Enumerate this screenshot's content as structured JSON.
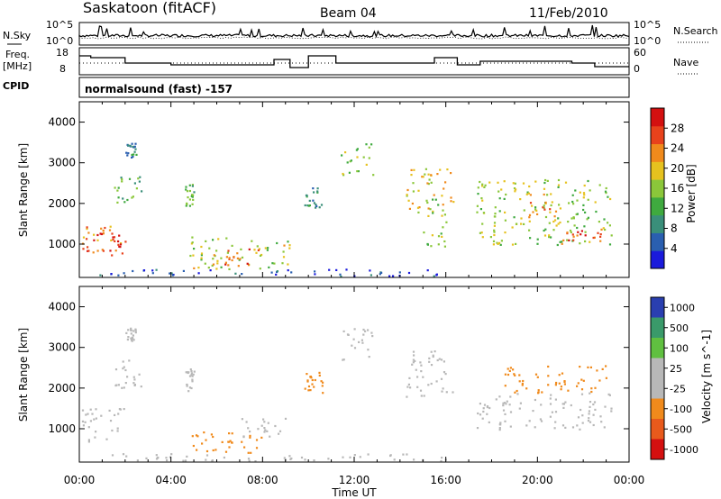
{
  "header": {
    "station": "Saskatoon (fitACF)",
    "beam": "Beam 04",
    "date": "11/Feb/2010"
  },
  "left_labels": {
    "nsky": "N.Sky",
    "freq_line1": "Freq.",
    "freq_line2": "[MHz]",
    "cpid": "CPID"
  },
  "right_labels": {
    "nsearch": "N.Search",
    "nave": "Nave"
  },
  "cpid_text": "normalsound (fast) -157",
  "noise_panel": {
    "ticks_left": [
      "10^5",
      "10^0"
    ],
    "ticks_right": [
      "10^5",
      "10^0"
    ]
  },
  "freq_panel": {
    "ticks_left": [
      "18",
      "8"
    ],
    "ticks_right": [
      "60",
      "0"
    ]
  },
  "colors": {
    "power": [
      "#1a1adc",
      "#2a5fb0",
      "#3a8f7a",
      "#3faa3f",
      "#8bc73a",
      "#e6c21f",
      "#f08a1c",
      "#e8421c",
      "#d41010"
    ],
    "velocity": [
      "#2a3fb0",
      "#3a9a6a",
      "#60c040",
      "#b8b8b8",
      "#b8b8b8",
      "#f08a1c",
      "#e85a1c",
      "#d41010"
    ]
  },
  "chart_data": [
    {
      "type": "heatmap",
      "name": "power",
      "xlabel": "",
      "ylabel": "Slant Range [km]",
      "ylim": [
        180,
        4500
      ],
      "y_ticks": [
        "1000",
        "2000",
        "3000",
        "4000"
      ],
      "x_ticks": [
        "00:00",
        "04:00",
        "08:00",
        "12:00",
        "16:00",
        "20:00",
        "00:00"
      ],
      "colorbar_label": "Power [dB]",
      "colorbar_ticks": [
        "4",
        "8",
        "12",
        "16",
        "20",
        "24",
        "28"
      ],
      "regions": [
        {
          "t0": 0.1,
          "t1": 2.0,
          "r0": 700,
          "r1": 1500,
          "v": 24
        },
        {
          "t0": 0.2,
          "t1": 1.8,
          "r0": 850,
          "r1": 1300,
          "v": 28
        },
        {
          "t0": 1.5,
          "t1": 2.7,
          "r0": 2000,
          "r1": 2700,
          "v": 14
        },
        {
          "t0": 2.0,
          "t1": 2.5,
          "r0": 3150,
          "r1": 3500,
          "v": 10
        },
        {
          "t0": 4.6,
          "t1": 5.0,
          "r0": 1900,
          "r1": 2500,
          "v": 15
        },
        {
          "t0": 4.8,
          "t1": 9.2,
          "r0": 400,
          "r1": 1200,
          "v": 18
        },
        {
          "t0": 5.5,
          "t1": 7.8,
          "r0": 450,
          "r1": 900,
          "v": 26
        },
        {
          "t0": 9.8,
          "t1": 10.6,
          "r0": 1900,
          "r1": 2400,
          "v": 10
        },
        {
          "t0": 11.4,
          "t1": 12.8,
          "r0": 2700,
          "r1": 3500,
          "v": 16
        },
        {
          "t0": 14.2,
          "t1": 16.3,
          "r0": 1800,
          "r1": 3000,
          "v": 20
        },
        {
          "t0": 15.0,
          "t1": 16.0,
          "r0": 900,
          "r1": 2200,
          "v": 16
        },
        {
          "t0": 17.3,
          "t1": 23.2,
          "r0": 1000,
          "r1": 2600,
          "v": 17
        },
        {
          "t0": 19.5,
          "t1": 21.0,
          "r0": 1400,
          "r1": 2300,
          "v": 22
        },
        {
          "t0": 21.0,
          "t1": 22.8,
          "r0": 1000,
          "r1": 1400,
          "v": 27
        },
        {
          "t0": 0.5,
          "t1": 16.0,
          "r0": 180,
          "r1": 400,
          "v": 6
        }
      ]
    },
    {
      "type": "heatmap",
      "name": "velocity",
      "xlabel": "Time UT",
      "ylabel": "Slant Range [km]",
      "ylim": [
        180,
        4500
      ],
      "y_ticks": [
        "1000",
        "2000",
        "3000",
        "4000"
      ],
      "x_ticks": [
        "00:00",
        "04:00",
        "08:00",
        "12:00",
        "16:00",
        "20:00",
        "00:00"
      ],
      "colorbar_label": "Velocity [m s^-1]",
      "colorbar_ticks": [
        "1000",
        "500",
        "100",
        "25",
        "-25",
        "-100",
        "-500",
        "-1000"
      ],
      "regions": [
        {
          "t0": 0.1,
          "t1": 2.0,
          "r0": 700,
          "r1": 1600,
          "v": -80
        },
        {
          "t0": 1.5,
          "t1": 2.7,
          "r0": 2000,
          "r1": 2700,
          "v": 0
        },
        {
          "t0": 2.0,
          "t1": 2.5,
          "r0": 3150,
          "r1": 3500,
          "v": 0
        },
        {
          "t0": 4.6,
          "t1": 5.0,
          "r0": 1900,
          "r1": 2500,
          "v": 0
        },
        {
          "t0": 4.8,
          "t1": 8.0,
          "r0": 400,
          "r1": 1000,
          "v": -150
        },
        {
          "t0": 7.0,
          "t1": 9.0,
          "r0": 800,
          "r1": 1300,
          "v": 0
        },
        {
          "t0": 9.8,
          "t1": 10.6,
          "r0": 1900,
          "r1": 2400,
          "v": -300
        },
        {
          "t0": 11.4,
          "t1": 12.8,
          "r0": 2700,
          "r1": 3500,
          "v": 0
        },
        {
          "t0": 14.2,
          "t1": 16.3,
          "r0": 1800,
          "r1": 3000,
          "v": 0
        },
        {
          "t0": 17.3,
          "t1": 23.2,
          "r0": 1000,
          "r1": 1900,
          "v": 0
        },
        {
          "t0": 18.5,
          "t1": 23.0,
          "r0": 1900,
          "r1": 2600,
          "v": -200
        },
        {
          "t0": 0.5,
          "t1": 16.0,
          "r0": 180,
          "r1": 400,
          "v": 0
        }
      ]
    }
  ]
}
